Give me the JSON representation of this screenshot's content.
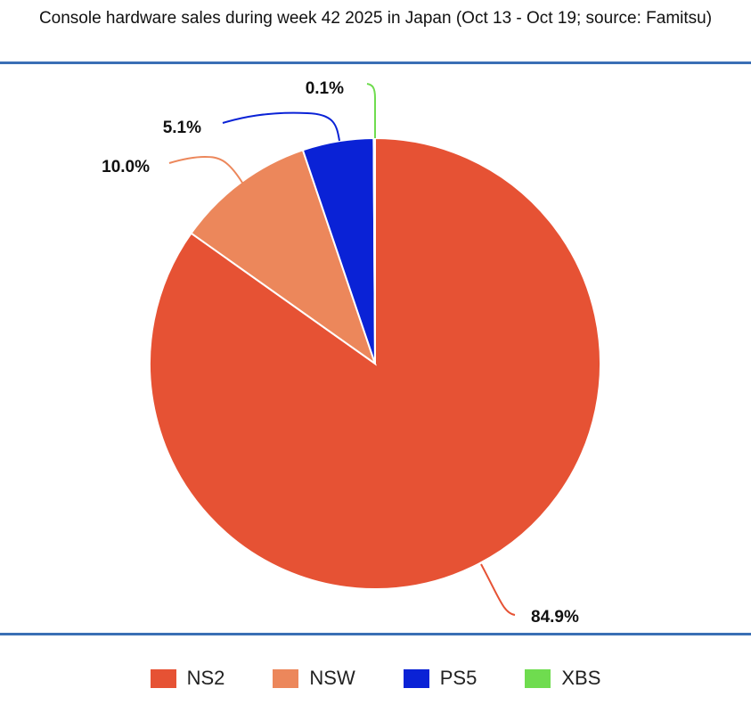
{
  "chart_data": {
    "type": "pie",
    "title": "Console hardware sales during week 42 2025 in Japan (Oct 13 - Oct 19; source: Famitsu)",
    "categories": [
      "NS2",
      "NSW",
      "PS5",
      "XBS"
    ],
    "values": [
      84.9,
      10.0,
      5.1,
      0.1
    ],
    "labels": [
      "84.9%",
      "10.0%",
      "5.1%",
      "0.1%"
    ],
    "colors": [
      "#e65234",
      "#ec875b",
      "#0a22d6",
      "#6fdc4f"
    ],
    "legend_position": "bottom"
  }
}
